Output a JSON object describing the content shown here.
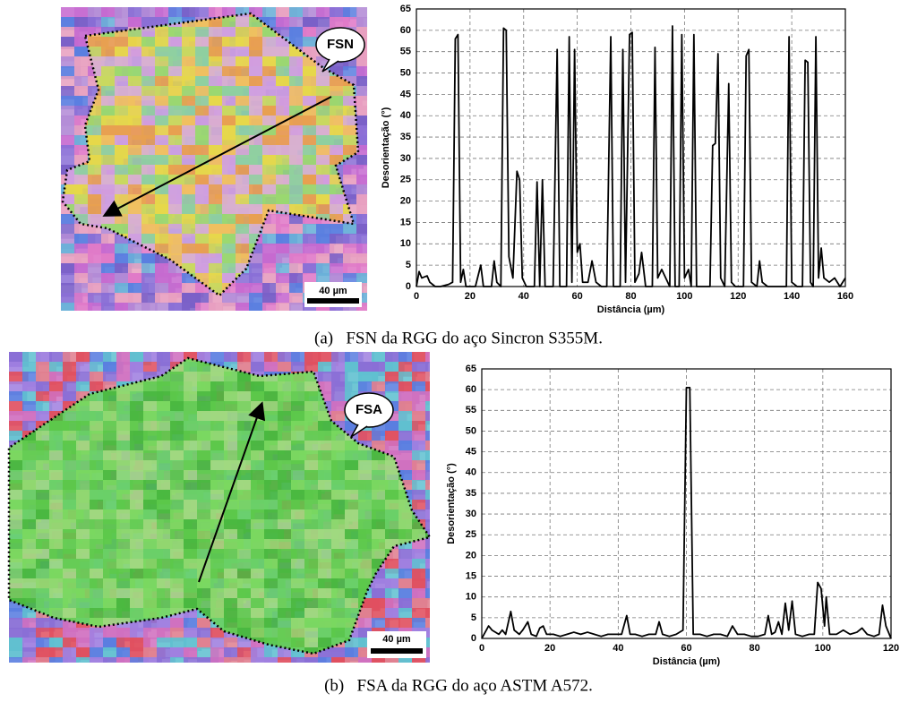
{
  "chart_data": [
    {
      "type": "line",
      "x_label": "Distância (µm)",
      "y_label": "Desorientação (°)",
      "xlim": [
        0,
        160
      ],
      "ylim": [
        0,
        65
      ],
      "xticks": [
        0,
        20,
        40,
        60,
        80,
        100,
        120,
        140,
        160
      ],
      "yticks": [
        0,
        5,
        10,
        15,
        20,
        25,
        30,
        35,
        40,
        45,
        50,
        55,
        60,
        65
      ],
      "grid": true,
      "x": [
        0,
        1,
        2,
        4,
        5,
        7,
        9,
        12,
        13.5,
        14.5,
        15.5,
        16.5,
        17.5,
        18.5,
        22,
        24,
        25,
        28,
        29,
        30,
        31.5,
        32.5,
        33.5,
        34.5,
        36,
        37.5,
        38.5,
        39.5,
        41,
        44,
        45,
        46,
        47,
        48,
        51,
        52.5,
        53.5,
        56,
        57,
        58,
        59,
        60,
        61,
        62,
        64,
        65.5,
        67,
        69,
        71,
        72.5,
        73.5,
        76,
        77,
        78,
        79.5,
        80.5,
        81.5,
        83,
        84,
        85.5,
        88,
        89,
        90,
        91.5,
        93,
        94.5,
        95.5,
        96.5,
        98,
        99,
        100,
        101.5,
        102.5,
        103.5,
        104.5,
        107,
        109.5,
        110.5,
        111.5,
        112.5,
        113.5,
        115,
        116.5,
        117.5,
        119,
        122,
        123,
        124,
        125,
        127,
        128,
        129,
        131,
        133,
        135,
        138,
        139,
        140,
        142,
        144,
        145,
        146,
        147,
        148,
        149,
        150,
        151,
        152,
        154,
        156,
        158,
        160
      ],
      "series": [
        {
          "color": "#000000",
          "values": [
            0,
            3.5,
            2,
            2.5,
            1,
            0,
            0,
            0.5,
            1,
            58,
            59,
            1,
            4,
            0,
            0,
            5,
            0,
            0,
            6,
            1,
            0,
            60.5,
            60,
            7,
            2,
            27,
            25,
            2,
            0,
            0,
            24.5,
            0,
            25,
            0,
            0,
            55.5,
            0,
            0,
            58.5,
            1,
            55.5,
            8,
            10,
            1,
            1,
            6,
            1,
            0,
            0,
            58.5,
            0,
            0,
            55.5,
            1,
            59,
            59.5,
            1,
            3,
            8,
            0,
            0,
            56,
            2,
            4,
            2,
            0,
            61,
            0,
            0,
            59,
            2,
            4,
            0,
            59,
            0,
            0,
            0,
            33,
            33.5,
            54.5,
            2,
            0,
            47.5,
            1,
            0,
            0,
            54,
            55.5,
            1,
            0,
            6,
            1,
            0,
            0,
            0,
            0,
            58.5,
            1,
            0,
            0,
            53,
            52.5,
            1,
            0,
            58.5,
            2,
            9,
            2,
            1,
            2,
            0,
            2
          ]
        }
      ]
    },
    {
      "type": "line",
      "x_label": "Distância (µm)",
      "y_label": "Desorientação (°)",
      "xlim": [
        0,
        120
      ],
      "ylim": [
        0,
        65
      ],
      "xticks": [
        0,
        20,
        40,
        60,
        80,
        100,
        120
      ],
      "yticks": [
        0,
        5,
        10,
        15,
        20,
        25,
        30,
        35,
        40,
        45,
        50,
        55,
        60,
        65
      ],
      "grid": true,
      "x": [
        0,
        2,
        3,
        5,
        6,
        7,
        8.5,
        9.5,
        11,
        12,
        13.5,
        14.5,
        16,
        17,
        18,
        19,
        21,
        23,
        25,
        27,
        29,
        31,
        33,
        35,
        37,
        39,
        41,
        42.5,
        43.5,
        45,
        47,
        49,
        51,
        52,
        53,
        55,
        57,
        59,
        60,
        61,
        62,
        64,
        66,
        68,
        70,
        72,
        73.5,
        75,
        77,
        79,
        81,
        83,
        84,
        85,
        86,
        87,
        88,
        89,
        90,
        91,
        92,
        94,
        96,
        97.5,
        98.5,
        99.5,
        100.5,
        101,
        102,
        104,
        106,
        108,
        110,
        111.5,
        113,
        115,
        116.5,
        117.5,
        118.5,
        120
      ],
      "series": [
        {
          "color": "#000000",
          "values": [
            0,
            3,
            2,
            1,
            2,
            1,
            6.5,
            2,
            1,
            2,
            4,
            1,
            0.5,
            2.5,
            3,
            1,
            1,
            0.5,
            1,
            1.5,
            1,
            1.5,
            1,
            0.5,
            1,
            1,
            1,
            5.5,
            1,
            1,
            0.5,
            1,
            1,
            4,
            1,
            0.5,
            1,
            2,
            60.5,
            60.5,
            1,
            1,
            0.5,
            1,
            1,
            0.5,
            3,
            1,
            1,
            0.5,
            0.5,
            1,
            5.5,
            1,
            1.5,
            4,
            1,
            8.5,
            2,
            9,
            1,
            0.5,
            1,
            1,
            13.5,
            12,
            3,
            10,
            1,
            1,
            2,
            1,
            1.5,
            2.5,
            1,
            0.5,
            1,
            8,
            3,
            0
          ]
        }
      ]
    }
  ],
  "images": [
    {
      "label": "FSN",
      "scale_bar": "40 µm"
    },
    {
      "label": "FSA",
      "scale_bar": "40 µm"
    }
  ],
  "captions": [
    "(a)   FSN da RGG do aço Sincron S355M.",
    "(b)   FSA da RGG do aço ASTM A572."
  ]
}
